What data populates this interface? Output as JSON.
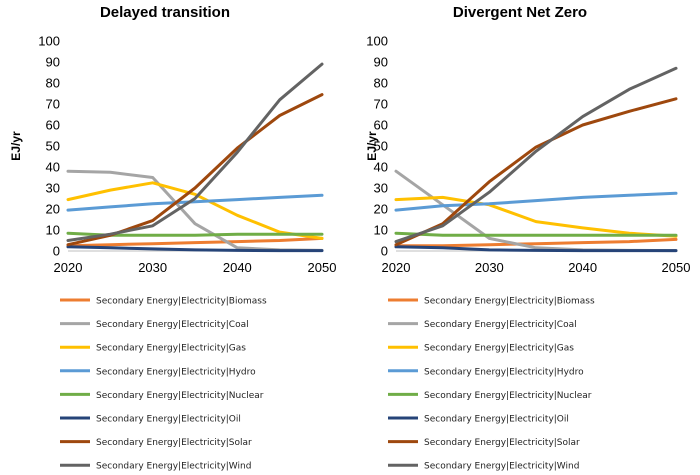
{
  "chart_data": [
    {
      "type": "line",
      "title": "Delayed transition",
      "ylabel": "EJ/yr",
      "xlabel": "",
      "x": [
        2020,
        2025,
        2030,
        2035,
        2040,
        2045,
        2050
      ],
      "xticks": [
        "2020",
        "2030",
        "2040",
        "2050"
      ],
      "yticks": [
        "0",
        "10",
        "20",
        "30",
        "40",
        "50",
        "60",
        "70",
        "80",
        "90",
        "100"
      ],
      "xlim": [
        2020,
        2050
      ],
      "ylim": [
        0,
        100
      ],
      "grid": false,
      "legend": "bottom",
      "series": [
        {
          "name": "Secondary Energy|Electricity|Biomass",
          "color": "#ED7D31",
          "values": [
            2.5,
            3,
            3.5,
            4,
            4.5,
            5,
            6
          ]
        },
        {
          "name": "Secondary Energy|Electricity|Coal",
          "color": "#A5A5A5",
          "values": [
            38,
            37.5,
            35,
            13,
            1.5,
            0.5,
            0.3
          ]
        },
        {
          "name": "Secondary Energy|Electricity|Gas",
          "color": "#FFC000",
          "values": [
            24.5,
            29,
            32.5,
            27,
            17,
            9,
            6
          ]
        },
        {
          "name": "Secondary Energy|Electricity|Hydro",
          "color": "#5B9BD5",
          "values": [
            19.5,
            21,
            22.5,
            23.5,
            24.5,
            25.5,
            26.5
          ]
        },
        {
          "name": "Secondary Energy|Electricity|Nuclear",
          "color": "#70AD47",
          "values": [
            8.5,
            7.5,
            7.5,
            7.5,
            8,
            8,
            8
          ]
        },
        {
          "name": "Secondary Energy|Electricity|Oil",
          "color": "#264478",
          "values": [
            2,
            1.5,
            1,
            0.5,
            0.3,
            0.2,
            0.2
          ]
        },
        {
          "name": "Secondary Energy|Electricity|Solar",
          "color": "#9E480E",
          "values": [
            3,
            7.5,
            14.5,
            30,
            49,
            64.5,
            74.5
          ]
        },
        {
          "name": "Secondary Energy|Electricity|Wind",
          "color": "#636363",
          "values": [
            5,
            8,
            12,
            25,
            47,
            72,
            89
          ]
        }
      ]
    },
    {
      "type": "line",
      "title": "Divergent Net Zero",
      "ylabel": "EJ/yr",
      "xlabel": "",
      "x": [
        2020,
        2025,
        2030,
        2035,
        2040,
        2045,
        2050
      ],
      "xticks": [
        "2020",
        "2030",
        "2040",
        "2050"
      ],
      "yticks": [
        "0",
        "10",
        "20",
        "30",
        "40",
        "50",
        "60",
        "70",
        "80",
        "90",
        "100"
      ],
      "xlim": [
        2020,
        2050
      ],
      "ylim": [
        0,
        100
      ],
      "grid": false,
      "legend": "bottom",
      "series": [
        {
          "name": "Secondary Energy|Electricity|Biomass",
          "color": "#ED7D31",
          "values": [
            2.5,
            2.5,
            3,
            3.5,
            4,
            4.5,
            5.5
          ]
        },
        {
          "name": "Secondary Energy|Electricity|Coal",
          "color": "#A5A5A5",
          "values": [
            38,
            22,
            6,
            1.5,
            0.5,
            0.3,
            0.2
          ]
        },
        {
          "name": "Secondary Energy|Electricity|Gas",
          "color": "#FFC000",
          "values": [
            24.5,
            25.5,
            22,
            14,
            11,
            8.5,
            7
          ]
        },
        {
          "name": "Secondary Energy|Electricity|Hydro",
          "color": "#5B9BD5",
          "values": [
            19.5,
            21.5,
            22.5,
            24,
            25.5,
            26.5,
            27.5
          ]
        },
        {
          "name": "Secondary Energy|Electricity|Nuclear",
          "color": "#70AD47",
          "values": [
            8.5,
            7.5,
            7.5,
            7.5,
            7.5,
            7.5,
            7.5
          ]
        },
        {
          "name": "Secondary Energy|Electricity|Oil",
          "color": "#264478",
          "values": [
            2,
            1.5,
            0.5,
            0.3,
            0.2,
            0.2,
            0.2
          ]
        },
        {
          "name": "Secondary Energy|Electricity|Solar",
          "color": "#9E480E",
          "values": [
            3,
            13,
            33,
            49.5,
            60,
            66.5,
            72.5
          ]
        },
        {
          "name": "Secondary Energy|Electricity|Wind",
          "color": "#636363",
          "values": [
            4.5,
            12,
            28,
            47.5,
            64,
            77,
            87
          ]
        }
      ]
    }
  ]
}
